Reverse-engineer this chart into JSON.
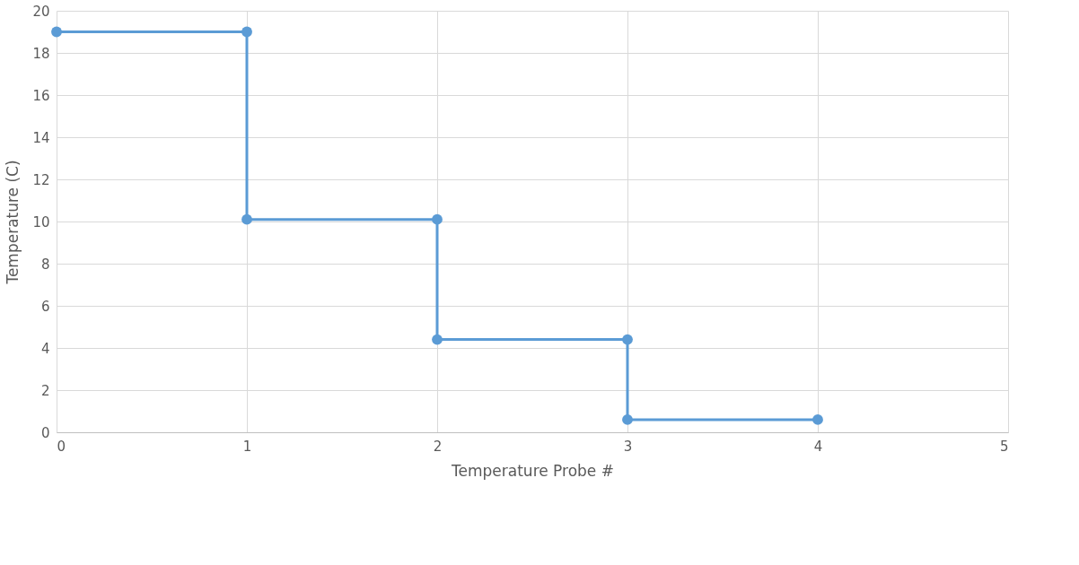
{
  "chart_data": {
    "type": "line",
    "xlabel": "Temperature Probe #",
    "ylabel": "Temperature (C)",
    "x": [
      0,
      1,
      1,
      2,
      2,
      3,
      3,
      4
    ],
    "series": [
      {
        "color": "#5b9bd5",
        "values": [
          19,
          19,
          10.1,
          10.1,
          4.4,
          4.4,
          0.6,
          0.6
        ]
      }
    ],
    "xlim": [
      0,
      5
    ],
    "xticks": [
      0,
      1,
      2,
      3,
      4,
      5
    ],
    "ylim": [
      0,
      20
    ],
    "yticks": [
      0,
      2,
      4,
      6,
      8,
      10,
      12,
      14,
      16,
      18,
      20
    ],
    "grid": true,
    "marker": "circle",
    "line_style": "solid"
  }
}
